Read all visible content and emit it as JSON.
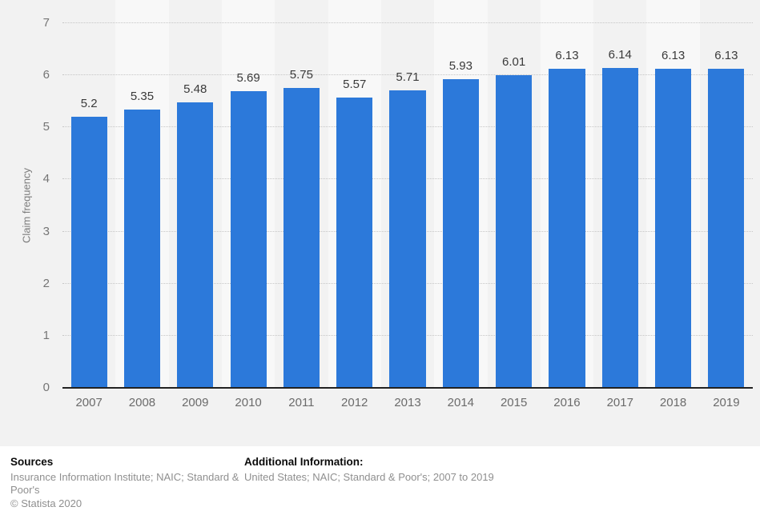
{
  "chart_data": {
    "type": "bar",
    "title": "",
    "xlabel": "",
    "ylabel": "Claim frequency",
    "categories": [
      "2007",
      "2008",
      "2009",
      "2010",
      "2011",
      "2012",
      "2013",
      "2014",
      "2015",
      "2016",
      "2017",
      "2018",
      "2019"
    ],
    "values": [
      5.2,
      5.35,
      5.48,
      5.69,
      5.75,
      5.57,
      5.71,
      5.93,
      6.01,
      6.13,
      6.14,
      6.13,
      6.13
    ],
    "ylim": [
      0,
      7
    ],
    "yticks": [
      0,
      1,
      2,
      3,
      4,
      5,
      6,
      7
    ],
    "grid": "horizontal-dotted",
    "legend": "none",
    "bar_color": "#2c79da",
    "canvas_background": "#f2f2f2",
    "stripe_color": "#f8f8f8"
  },
  "footer": {
    "sources_heading": "Sources",
    "sources_text": "Insurance Information Institute; NAIC; Standard & Poor's",
    "copyright": "© Statista 2020",
    "additional_heading": "Additional Information:",
    "additional_text": "United States; NAIC; Standard & Poor's; 2007 to 2019"
  }
}
